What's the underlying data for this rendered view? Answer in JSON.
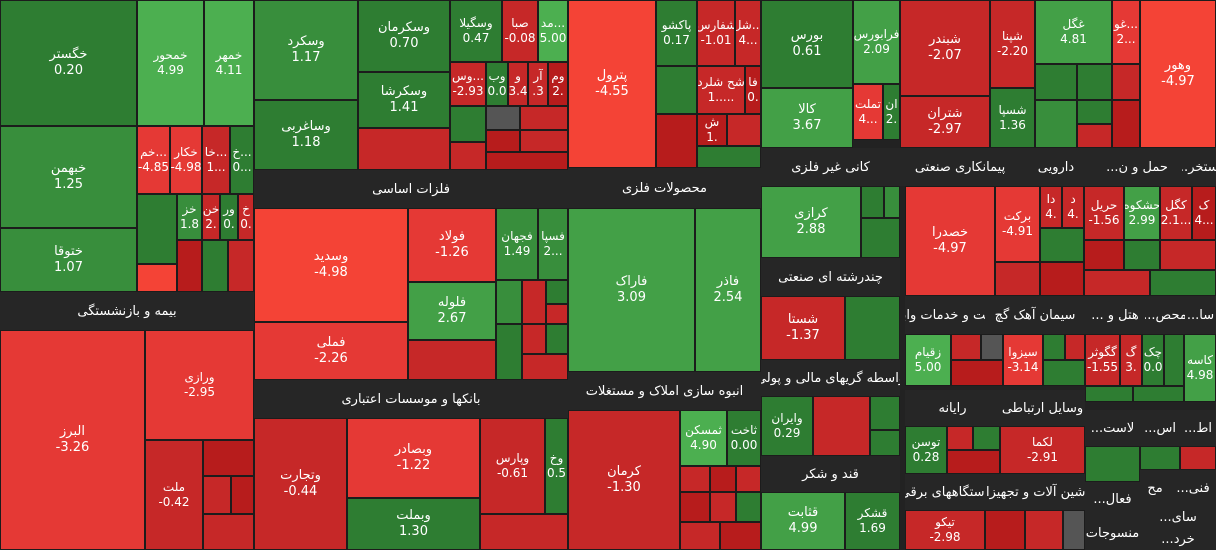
{
  "colors": {
    "c-dg": "#2e7d32",
    "c-mg": "#388e3c",
    "c-lg": "#43a047",
    "c-vg": "#4caf50",
    "c-dr": "#b71c1c",
    "c-mr": "#c62828",
    "c-lr": "#e53935",
    "c-vr": "#f44336",
    "c-gy": "#555555",
    "sector_bar": "#262626"
  },
  "sectors": [
    {
      "id": "bime",
      "label": "بیمه و بازنشستگی"
    },
    {
      "id": "felezat",
      "label": "فلزات اساسی"
    },
    {
      "id": "banks",
      "label": "بانکها و موسسات اعتباری"
    },
    {
      "id": "mahsulat",
      "label": "محصولات فلزی"
    },
    {
      "id": "anbuh",
      "label": "انبوه سازی املاک و مستغلات"
    },
    {
      "id": "kani",
      "label": "کانی غیر فلزی"
    },
    {
      "id": "peyman",
      "label": "پیمانکاری صنعتی"
    },
    {
      "id": "daruei",
      "label": "دارویی"
    },
    {
      "id": "haml",
      "label": "حمل و ن..."
    },
    {
      "id": "estekhr",
      "label": "استخر..."
    },
    {
      "id": "chandresh",
      "label": "چندرشته ای صنعتی"
    },
    {
      "id": "siman",
      "label": "سیمان آهک گچ"
    },
    {
      "id": "zeraat",
      "label": "زراعت و خدمات وابسته"
    },
    {
      "id": "hotel",
      "label": "هتل و ..."
    },
    {
      "id": "mahsul",
      "label": "محص..."
    },
    {
      "id": "sakht",
      "label": "سا..."
    },
    {
      "id": "vaseteh",
      "label": "واسطه گریهای مالی و پولی"
    },
    {
      "id": "rayane",
      "label": "رایانه"
    },
    {
      "id": "ertebat",
      "label": "وسایل ارتباطی"
    },
    {
      "id": "ghand",
      "label": "قند و شکر"
    },
    {
      "id": "mashin",
      "label": "ماشین آلات و تجهیزات"
    },
    {
      "id": "barghi",
      "label": "دستگاههای برقی"
    },
    {
      "id": "last",
      "label": "لاست..."
    },
    {
      "id": "as",
      "label": "اس..."
    },
    {
      "id": "at",
      "label": "اط..."
    },
    {
      "id": "fel",
      "label": "فعال..."
    },
    {
      "id": "manso",
      "label": "منسوجات"
    },
    {
      "id": "fani",
      "label": "فنی..."
    },
    {
      "id": "mah",
      "label": "مح"
    },
    {
      "id": "khord",
      "label": "خرد..."
    },
    {
      "id": "sai",
      "label": "سای..."
    }
  ],
  "tiles": [
    {
      "id": "t0",
      "sym": "خگستر",
      "chg": "0.20"
    },
    {
      "id": "t1",
      "sym": "خمحور",
      "chg": "4.99"
    },
    {
      "id": "t2",
      "sym": "خمهر",
      "chg": "4.11"
    },
    {
      "id": "t3",
      "sym": "خبهمن",
      "chg": "1.25"
    },
    {
      "id": "t4",
      "sym": "خم...",
      "chg": "-4.85"
    },
    {
      "id": "t5",
      "sym": "خکار",
      "chg": "-4.98"
    },
    {
      "id": "t6",
      "sym": "خا...",
      "chg": "1..."
    },
    {
      "id": "t7",
      "sym": "خ...",
      "chg": "0..."
    },
    {
      "id": "t8",
      "sym": "ختوقا",
      "chg": "1.07"
    },
    {
      "id": "t9",
      "sym": "خز",
      "chg": "1.8"
    },
    {
      "id": "t10",
      "sym": "خن",
      "chg": "2."
    },
    {
      "id": "t11",
      "sym": "ور",
      "chg": "0."
    },
    {
      "id": "t12",
      "sym": "خ",
      "chg": "0."
    },
    {
      "id": "t13",
      "sym": "البرز",
      "chg": "-3.26"
    },
    {
      "id": "t14",
      "sym": "ورازی",
      "chg": "-2.95"
    },
    {
      "id": "t15",
      "sym": "ملت",
      "chg": "-0.42"
    },
    {
      "id": "t16",
      "sym": "وسکرد",
      "chg": "1.17"
    },
    {
      "id": "t17",
      "sym": "وسکرمان",
      "chg": "0.70"
    },
    {
      "id": "t18",
      "sym": "وسگیلا",
      "chg": "0.47"
    },
    {
      "id": "t19",
      "sym": "صبا",
      "chg": "-0.08"
    },
    {
      "id": "t20",
      "sym": "مد...",
      "chg": "5.00"
    },
    {
      "id": "t21",
      "sym": "وسکرشا",
      "chg": "1.41"
    },
    {
      "id": "t22",
      "sym": "وس...",
      "chg": "-2.93"
    },
    {
      "id": "t23",
      "sym": "وب",
      "chg": "0.0"
    },
    {
      "id": "t24",
      "sym": "و",
      "chg": "3.4"
    },
    {
      "id": "t25",
      "sym": "آر",
      "chg": ".3"
    },
    {
      "id": "t26",
      "sym": "وم",
      "chg": "2."
    },
    {
      "id": "t27",
      "sym": "وساغربی",
      "chg": "1.18"
    },
    {
      "id": "t28",
      "sym": "وسدید",
      "chg": "-4.98"
    },
    {
      "id": "t29",
      "sym": "فولاد",
      "chg": "-1.26"
    },
    {
      "id": "t30",
      "sym": "فجهان",
      "chg": "1.49"
    },
    {
      "id": "t31",
      "sym": "فسپا",
      "chg": "2..."
    },
    {
      "id": "t32",
      "sym": "فلوله",
      "chg": "2.67"
    },
    {
      "id": "t33",
      "sym": "فملی",
      "chg": "-2.26"
    },
    {
      "id": "t34",
      "sym": "وتجارت",
      "chg": "-0.44"
    },
    {
      "id": "t35",
      "sym": "وبصادر",
      "chg": "-1.22"
    },
    {
      "id": "t36",
      "sym": "وپارس",
      "chg": "-0.61"
    },
    {
      "id": "t37",
      "sym": "وخ",
      "chg": "0.5"
    },
    {
      "id": "t38",
      "sym": "وبملت",
      "chg": "1.30"
    },
    {
      "id": "t39",
      "sym": "پترول",
      "chg": "-4.55"
    },
    {
      "id": "t40",
      "sym": "پاکشو",
      "chg": "0.17"
    },
    {
      "id": "t41",
      "sym": "شفارس",
      "chg": "-1.01"
    },
    {
      "id": "t42",
      "sym": "شل...",
      "chg": "4..."
    },
    {
      "id": "t43",
      "sym": "شح شلرد",
      "chg": "1....."
    },
    {
      "id": "t44",
      "sym": "ش",
      "chg": "1."
    },
    {
      "id": "t45",
      "sym": "فا",
      "chg": "0."
    },
    {
      "id": "t46",
      "sym": "فاراک",
      "chg": "3.09"
    },
    {
      "id": "t47",
      "sym": "فاذر",
      "chg": "2.54"
    },
    {
      "id": "t48",
      "sym": "کرمان",
      "chg": "-1.30"
    },
    {
      "id": "t49",
      "sym": "ثمسکن",
      "chg": "4.90"
    },
    {
      "id": "t50",
      "sym": "ثاخت",
      "chg": "0.00"
    },
    {
      "id": "t51",
      "sym": "بورس",
      "chg": "0.61"
    },
    {
      "id": "t52",
      "sym": "فرابورس",
      "chg": "2.09"
    },
    {
      "id": "t53",
      "sym": "ان",
      "chg": "2."
    },
    {
      "id": "t54",
      "sym": "تملت",
      "chg": "4..."
    },
    {
      "id": "t55",
      "sym": "کالا",
      "chg": "3.67"
    },
    {
      "id": "t56",
      "sym": "شبندر",
      "chg": "-2.07"
    },
    {
      "id": "t57",
      "sym": "شتران",
      "chg": "-2.97"
    },
    {
      "id": "t58",
      "sym": "شپنا",
      "chg": "-2.20"
    },
    {
      "id": "t59",
      "sym": "شسپا",
      "chg": "1.36"
    },
    {
      "id": "t60",
      "sym": "غگل",
      "chg": "4.81"
    },
    {
      "id": "t61",
      "sym": "غو...",
      "chg": "2..."
    },
    {
      "id": "t62",
      "sym": "وهور",
      "chg": "-4.97"
    },
    {
      "id": "t63",
      "sym": "کرازی",
      "chg": "2.88"
    },
    {
      "id": "t64",
      "sym": "خصدرا",
      "chg": "-4.97"
    },
    {
      "id": "t65",
      "sym": "برکت",
      "chg": "-4.91"
    },
    {
      "id": "t66",
      "sym": "دا",
      "chg": "4."
    },
    {
      "id": "t67",
      "sym": "د",
      "chg": "4."
    },
    {
      "id": "t68",
      "sym": "حریل",
      "chg": "-1.56"
    },
    {
      "id": "t69",
      "sym": "حشکوه",
      "chg": "2.99"
    },
    {
      "id": "t70",
      "sym": "کگل",
      "chg": "2.1..."
    },
    {
      "id": "t71",
      "sym": "ک",
      "chg": "4..."
    },
    {
      "id": "t72",
      "sym": "شستا",
      "chg": "-1.37"
    },
    {
      "id": "t73",
      "sym": "زقیام",
      "chg": "5.00"
    },
    {
      "id": "t74",
      "sym": "سیزوا",
      "chg": "-3.14"
    },
    {
      "id": "t75",
      "sym": "گگوثر",
      "chg": "-1.55"
    },
    {
      "id": "t76",
      "sym": "گ",
      "chg": "3."
    },
    {
      "id": "t77",
      "sym": "چک",
      "chg": "0.0"
    },
    {
      "id": "t78",
      "sym": "کاسه",
      "chg": "4.98"
    },
    {
      "id": "t79",
      "sym": "وایران",
      "chg": "0.29"
    },
    {
      "id": "t80",
      "sym": "توسن",
      "chg": "0.28"
    },
    {
      "id": "t81",
      "sym": "لکما",
      "chg": "-2.91"
    },
    {
      "id": "t82",
      "sym": "قثابت",
      "chg": "4.99"
    },
    {
      "id": "t83",
      "sym": "قشکر",
      "chg": "1.69"
    },
    {
      "id": "t84",
      "sym": "تیکو",
      "chg": "-2.98"
    }
  ]
}
